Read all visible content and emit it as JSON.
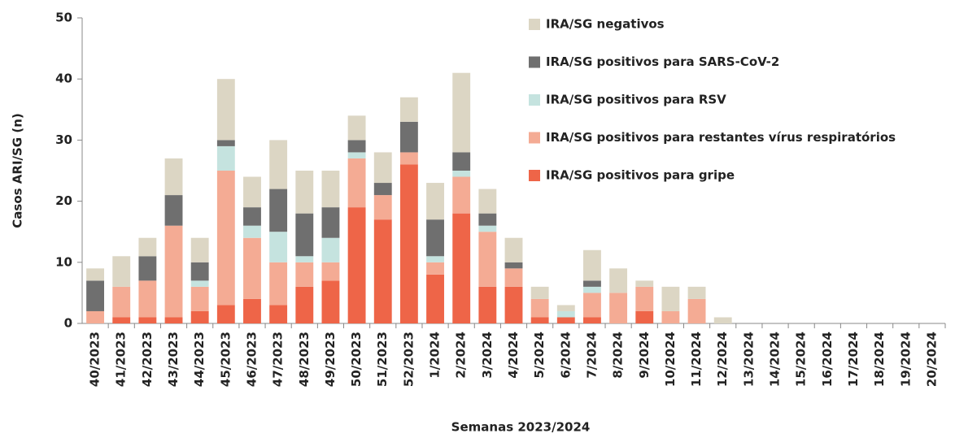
{
  "chart_data": {
    "type": "stacked-bar",
    "y_label": "Casos ARI/SG (n)",
    "x_label": "Semanas 2023/2024",
    "categories": [
      "40/2023",
      "41/2023",
      "42/2023",
      "43/2023",
      "44/2023",
      "45/2023",
      "46/2023",
      "47/2023",
      "48/2023",
      "49/2023",
      "50/2023",
      "51/2023",
      "52/2023",
      "1/2024",
      "2/2024",
      "3/2024",
      "4/2024",
      "5/2024",
      "6/2024",
      "7/2024",
      "8/2024",
      "9/2024",
      "10/2024",
      "11/2024",
      "12/2024",
      "13/2024",
      "14/2024",
      "15/2024",
      "16/2024",
      "17/2024",
      "18/2024",
      "19/2024",
      "20/2024"
    ],
    "series": [
      {
        "name": "IRA/SG positivos para gripe",
        "color": "#ee6548",
        "values": [
          0,
          1,
          1,
          1,
          2,
          3,
          4,
          3,
          6,
          7,
          19,
          17,
          26,
          8,
          18,
          6,
          6,
          1,
          1,
          1,
          0,
          2,
          0,
          0,
          0,
          0,
          0,
          0,
          0,
          0,
          0,
          0,
          0
        ]
      },
      {
        "name": "IRA/SG positivos para restantes vírus respiratórios",
        "color": "#f4ab94",
        "values": [
          2,
          5,
          6,
          15,
          4,
          22,
          10,
          7,
          4,
          3,
          8,
          4,
          2,
          2,
          6,
          9,
          3,
          3,
          0,
          4,
          5,
          4,
          2,
          4,
          0,
          0,
          0,
          0,
          0,
          0,
          0,
          0,
          0
        ]
      },
      {
        "name": "IRA/SG positivos para RSV",
        "color": "#c5e3df",
        "values": [
          0,
          0,
          0,
          0,
          1,
          4,
          2,
          5,
          1,
          4,
          1,
          0,
          0,
          1,
          1,
          1,
          0,
          0,
          1,
          1,
          0,
          0,
          0,
          0,
          0,
          0,
          0,
          0,
          0,
          0,
          0,
          0,
          0
        ]
      },
      {
        "name": "IRA/SG positivos para SARS-CoV-2",
        "color": "#6f6f6f",
        "values": [
          5,
          0,
          4,
          5,
          3,
          1,
          3,
          7,
          7,
          5,
          2,
          2,
          5,
          6,
          3,
          2,
          1,
          0,
          0,
          1,
          0,
          0,
          0,
          0,
          0,
          0,
          0,
          0,
          0,
          0,
          0,
          0,
          0
        ]
      },
      {
        "name": "IRA/SG negativos",
        "color": "#dcd6c4",
        "values": [
          2,
          5,
          3,
          6,
          4,
          10,
          5,
          8,
          7,
          6,
          4,
          5,
          4,
          6,
          13,
          4,
          4,
          2,
          1,
          5,
          4,
          1,
          4,
          2,
          1,
          0,
          0,
          0,
          0,
          0,
          0,
          0,
          0
        ]
      }
    ],
    "ylim": [
      0,
      50
    ],
    "yticks": [
      0,
      10,
      20,
      30,
      40,
      50
    ]
  }
}
